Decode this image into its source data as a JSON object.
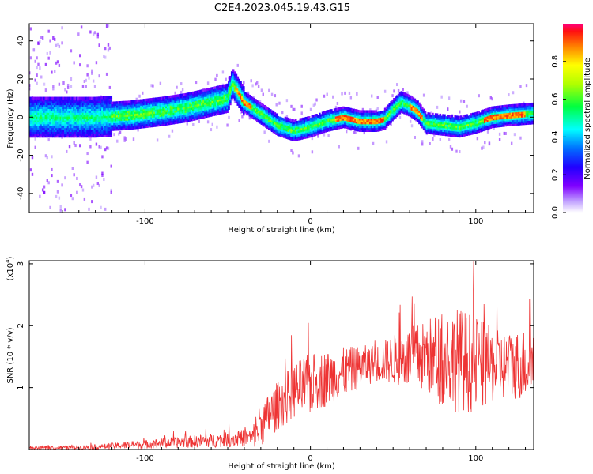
{
  "title": "C2E4.2023.045.19.43.G15",
  "colors": {
    "snr_line": "#ee3333",
    "colormap": [
      "#a0a0ff",
      "#8000ff",
      "#3000ff",
      "#0050ff",
      "#00e5ff",
      "#00ff60",
      "#c0ff00",
      "#ffd000",
      "#ff6000",
      "#ff0060"
    ]
  },
  "chart_data": [
    {
      "type": "heatmap",
      "xlabel": "Height of straight line (km)",
      "ylabel": "Frequency (Hz)",
      "xlim": [
        -170,
        135
      ],
      "ylim": [
        -50,
        49
      ],
      "xticks": [
        -100,
        0,
        100
      ],
      "xtick_labels": [
        "-100",
        "0",
        "100"
      ],
      "yticks": [
        -40,
        -20,
        0,
        20,
        40
      ],
      "ytick_labels": [
        "-40",
        "-20",
        "0",
        "20",
        "40"
      ],
      "colorbar": {
        "label": "Normalized spectral amplitude",
        "range": [
          0,
          1
        ],
        "ticks": [
          0,
          0.2,
          0.4,
          0.6,
          0.8
        ],
        "tick_labels": [
          "0.0",
          "0.2",
          "0.4",
          "0.6",
          "0.8"
        ]
      },
      "ridge": {
        "x": [
          -170,
          -150,
          -130,
          -110,
          -90,
          -75,
          -60,
          -50,
          -47,
          -40,
          -30,
          -20,
          -10,
          0,
          10,
          20,
          30,
          40,
          45,
          50,
          55,
          60,
          65,
          70,
          80,
          90,
          100,
          110,
          120,
          135
        ],
        "y": [
          0,
          0,
          0,
          1,
          3,
          5,
          8,
          10,
          18,
          8,
          2,
          -4,
          -7,
          -5,
          -2,
          0,
          -2,
          -2,
          -1,
          4,
          8,
          6,
          3,
          -3,
          -4,
          -5,
          -3,
          0,
          1,
          2
        ]
      }
    },
    {
      "type": "line",
      "xlabel": "Height of straight line (km)",
      "ylabel": "SNR (10 * v/v)",
      "y_multiplier": "(x10",
      "y_multiplier_exp": "4",
      "y_multiplier_close": ")",
      "xlim": [
        -170,
        135
      ],
      "ylim": [
        0,
        3.05
      ],
      "xticks": [
        -100,
        0,
        100
      ],
      "xtick_labels": [
        "-100",
        "0",
        "100"
      ],
      "yticks": [
        1,
        2,
        3
      ],
      "ytick_labels": [
        "1",
        "2",
        "3"
      ],
      "series": [
        {
          "x": [
            -170,
            -150,
            -130,
            -110,
            -90,
            -70,
            -50,
            -35,
            -33,
            -30,
            -20,
            -10,
            0,
            10,
            20,
            30,
            40,
            50,
            60,
            70,
            80,
            90,
            100,
            110,
            120,
            135
          ],
          "mean": [
            0.02,
            0.03,
            0.04,
            0.07,
            0.1,
            0.13,
            0.16,
            0.2,
            0.3,
            0.4,
            0.7,
            0.95,
            1.05,
            1.15,
            1.25,
            1.33,
            1.4,
            1.45,
            1.48,
            1.5,
            1.48,
            1.45,
            1.38,
            1.35,
            1.35,
            1.4
          ],
          "spread": [
            0.02,
            0.03,
            0.04,
            0.06,
            0.08,
            0.1,
            0.12,
            0.15,
            0.3,
            0.35,
            0.4,
            0.45,
            0.5,
            0.45,
            0.4,
            0.35,
            0.3,
            0.4,
            0.5,
            0.6,
            0.8,
            0.85,
            0.8,
            0.6,
            0.55,
            0.6
          ]
        }
      ]
    }
  ]
}
